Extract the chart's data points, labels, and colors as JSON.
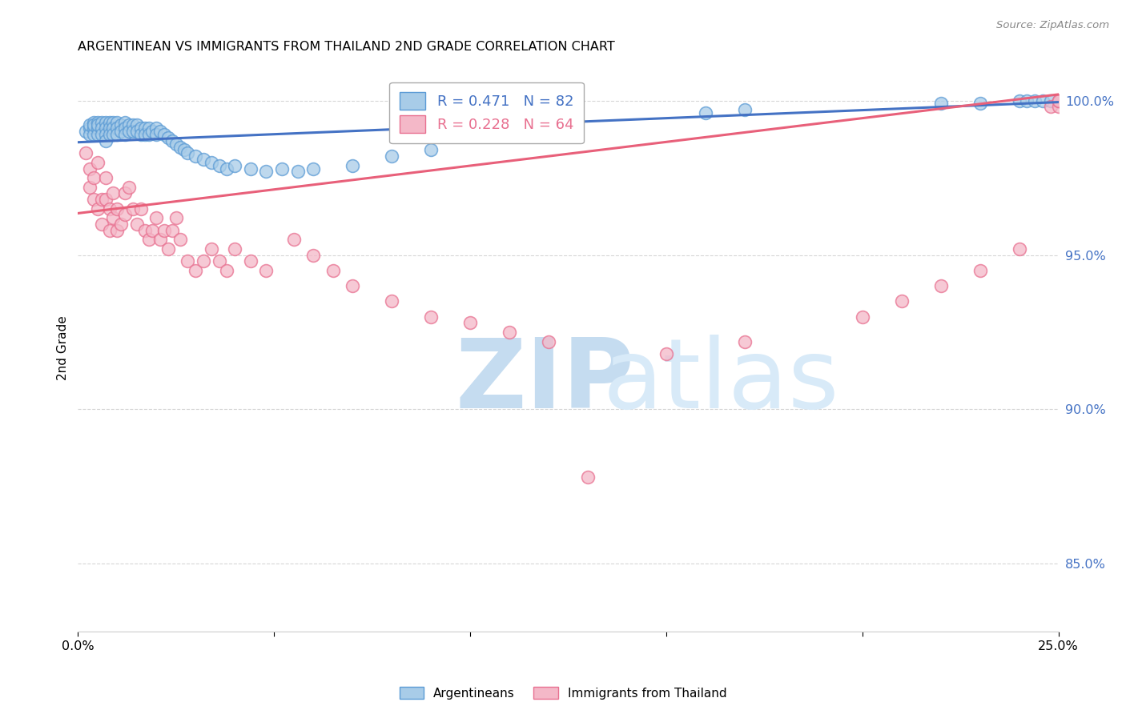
{
  "title": "ARGENTINEAN VS IMMIGRANTS FROM THAILAND 2ND GRADE CORRELATION CHART",
  "source": "Source: ZipAtlas.com",
  "ylabel": "2nd Grade",
  "yticks": [
    "85.0%",
    "90.0%",
    "95.0%",
    "100.0%"
  ],
  "ytick_vals": [
    0.85,
    0.9,
    0.95,
    1.0
  ],
  "xlim": [
    0.0,
    0.25
  ],
  "ylim": [
    0.828,
    1.012
  ],
  "legend1_text": "R = 0.471   N = 82",
  "legend2_text": "R = 0.228   N = 64",
  "blue_face_color": "#a8cce8",
  "blue_edge_color": "#5b9bd5",
  "pink_face_color": "#f4b8c8",
  "pink_edge_color": "#e87090",
  "blue_line_color": "#4472c4",
  "pink_line_color": "#e8607a",
  "watermark_zip_color": "#c8dff0",
  "watermark_atlas_color": "#d8e8f8",
  "grid_color": "#cccccc",
  "ytick_color": "#4472c4",
  "blue_line_x0": 0.0,
  "blue_line_x1": 0.25,
  "blue_line_y0": 0.9865,
  "blue_line_y1": 0.9995,
  "pink_line_x0": 0.0,
  "pink_line_x1": 0.25,
  "pink_line_y0": 0.9635,
  "pink_line_y1": 1.002,
  "blue_x": [
    0.002,
    0.003,
    0.003,
    0.003,
    0.004,
    0.004,
    0.004,
    0.004,
    0.005,
    0.005,
    0.005,
    0.005,
    0.006,
    0.006,
    0.006,
    0.007,
    0.007,
    0.007,
    0.007,
    0.008,
    0.008,
    0.008,
    0.009,
    0.009,
    0.009,
    0.01,
    0.01,
    0.01,
    0.011,
    0.011,
    0.012,
    0.012,
    0.012,
    0.013,
    0.013,
    0.014,
    0.014,
    0.015,
    0.015,
    0.016,
    0.016,
    0.017,
    0.017,
    0.018,
    0.018,
    0.019,
    0.02,
    0.02,
    0.021,
    0.022,
    0.023,
    0.024,
    0.025,
    0.026,
    0.027,
    0.028,
    0.03,
    0.032,
    0.034,
    0.036,
    0.038,
    0.04,
    0.044,
    0.048,
    0.052,
    0.056,
    0.06,
    0.07,
    0.08,
    0.09,
    0.16,
    0.17,
    0.22,
    0.23,
    0.24,
    0.242,
    0.244,
    0.246,
    0.248,
    0.25,
    0.252,
    0.254
  ],
  "blue_y": [
    0.99,
    0.991,
    0.989,
    0.992,
    0.993,
    0.991,
    0.989,
    0.992,
    0.993,
    0.991,
    0.989,
    0.992,
    0.993,
    0.991,
    0.989,
    0.993,
    0.991,
    0.989,
    0.987,
    0.993,
    0.991,
    0.989,
    0.993,
    0.991,
    0.989,
    0.993,
    0.991,
    0.989,
    0.992,
    0.99,
    0.993,
    0.991,
    0.989,
    0.992,
    0.99,
    0.992,
    0.99,
    0.992,
    0.99,
    0.991,
    0.989,
    0.991,
    0.989,
    0.991,
    0.989,
    0.99,
    0.991,
    0.989,
    0.99,
    0.989,
    0.988,
    0.987,
    0.986,
    0.985,
    0.984,
    0.983,
    0.982,
    0.981,
    0.98,
    0.979,
    0.978,
    0.979,
    0.978,
    0.977,
    0.978,
    0.977,
    0.978,
    0.979,
    0.982,
    0.984,
    0.996,
    0.997,
    0.999,
    0.999,
    1.0,
    1.0,
    1.0,
    1.0,
    1.0,
    1.0,
    1.0,
    1.0
  ],
  "pink_x": [
    0.002,
    0.003,
    0.003,
    0.004,
    0.004,
    0.005,
    0.005,
    0.006,
    0.006,
    0.007,
    0.007,
    0.008,
    0.008,
    0.009,
    0.009,
    0.01,
    0.01,
    0.011,
    0.012,
    0.012,
    0.013,
    0.014,
    0.015,
    0.016,
    0.017,
    0.018,
    0.019,
    0.02,
    0.021,
    0.022,
    0.023,
    0.024,
    0.025,
    0.026,
    0.028,
    0.03,
    0.032,
    0.034,
    0.036,
    0.038,
    0.04,
    0.044,
    0.048,
    0.055,
    0.06,
    0.065,
    0.07,
    0.08,
    0.09,
    0.1,
    0.11,
    0.12,
    0.13,
    0.15,
    0.17,
    0.2,
    0.21,
    0.22,
    0.23,
    0.24,
    0.248,
    0.25,
    0.25,
    0.25
  ],
  "pink_y": [
    0.983,
    0.978,
    0.972,
    0.975,
    0.968,
    0.98,
    0.965,
    0.968,
    0.96,
    0.975,
    0.968,
    0.965,
    0.958,
    0.97,
    0.962,
    0.965,
    0.958,
    0.96,
    0.97,
    0.963,
    0.972,
    0.965,
    0.96,
    0.965,
    0.958,
    0.955,
    0.958,
    0.962,
    0.955,
    0.958,
    0.952,
    0.958,
    0.962,
    0.955,
    0.948,
    0.945,
    0.948,
    0.952,
    0.948,
    0.945,
    0.952,
    0.948,
    0.945,
    0.955,
    0.95,
    0.945,
    0.94,
    0.935,
    0.93,
    0.928,
    0.925,
    0.922,
    0.878,
    0.918,
    0.922,
    0.93,
    0.935,
    0.94,
    0.945,
    0.952,
    0.998,
    0.998,
    1.0,
    1.0
  ]
}
